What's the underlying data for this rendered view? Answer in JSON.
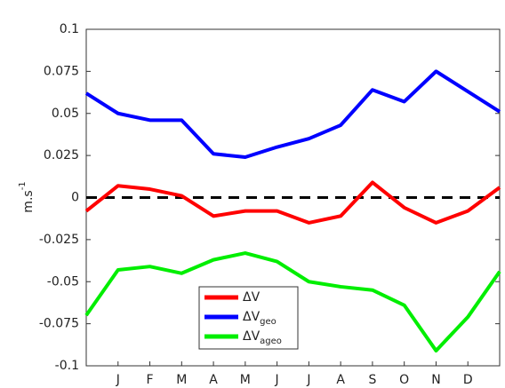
{
  "chart_data": {
    "type": "line",
    "ylabel": "m.s",
    "ylabel_sup": "-1",
    "categories": [
      null,
      "J",
      "F",
      "M",
      "A",
      "M",
      "J",
      "J",
      "A",
      "S",
      "O",
      "N",
      "D",
      null
    ],
    "series": [
      {
        "name": "ΔV",
        "color": "#ff0000",
        "values": [
          -0.008,
          0.007,
          0.005,
          0.001,
          -0.011,
          -0.008,
          -0.008,
          -0.015,
          -0.011,
          0.009,
          -0.006,
          -0.015,
          -0.008,
          0.006
        ]
      },
      {
        "name": "ΔV",
        "subscript": "geo",
        "color": "#0000ff",
        "values": [
          0.062,
          0.05,
          0.046,
          0.046,
          0.026,
          0.024,
          0.03,
          0.035,
          0.043,
          0.064,
          0.057,
          0.075,
          0.063,
          0.051
        ]
      },
      {
        "name": "ΔV",
        "subscript": "ageo",
        "color": "#00ee00",
        "values": [
          -0.07,
          -0.043,
          -0.041,
          -0.045,
          -0.037,
          -0.033,
          -0.038,
          -0.05,
          -0.053,
          -0.055,
          -0.064,
          -0.091,
          -0.071,
          -0.044
        ]
      }
    ],
    "hline": 0,
    "ylim": [
      -0.1,
      0.1
    ],
    "yticks": [
      -0.1,
      -0.075,
      -0.05,
      -0.025,
      0,
      0.025,
      0.05,
      0.075,
      0.1
    ],
    "legend": "lower center",
    "grid": false
  }
}
